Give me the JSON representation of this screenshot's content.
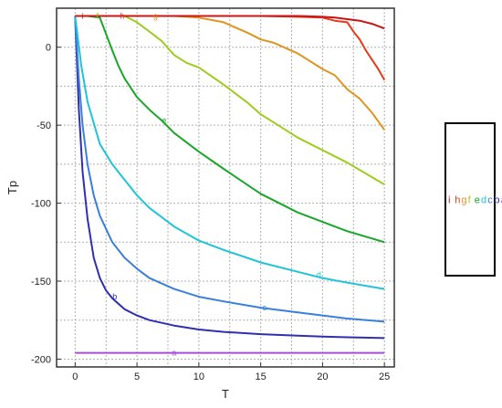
{
  "chart_data": {
    "type": "line",
    "xlabel": "T",
    "ylabel": "Tp",
    "xlim": [
      -1.5,
      25.8
    ],
    "ylim": [
      -205,
      25
    ],
    "x_ticks": [
      0,
      5,
      10,
      15,
      20,
      25
    ],
    "y_ticks": [
      0,
      -50,
      -100,
      -150,
      -200
    ],
    "grid": true,
    "legend_position": "right",
    "series": [
      {
        "name": "a",
        "color": "#a64dd9",
        "x": [
          0,
          25
        ],
        "y": [
          -196,
          -196
        ],
        "label_at": [
          8,
          -196
        ]
      },
      {
        "name": "b",
        "color": "#2f2fb0",
        "x": [
          0,
          0.3,
          0.6,
          1,
          1.5,
          2,
          2.5,
          3,
          4,
          5,
          6,
          8,
          10,
          12,
          15,
          18,
          20,
          22,
          25
        ],
        "y": [
          20,
          -40,
          -80,
          -110,
          -135,
          -148,
          -156,
          -161,
          -168,
          -172,
          -175,
          -178.5,
          -181,
          -182.5,
          -184,
          -185,
          -185.5,
          -186,
          -186.5
        ],
        "label_at": [
          3.2,
          -160
        ]
      },
      {
        "name": "c",
        "color": "#3a7fd9",
        "x": [
          0,
          0.3,
          0.6,
          1,
          1.5,
          2,
          3,
          4,
          5,
          6,
          8,
          10,
          12,
          15,
          18,
          20,
          22,
          25
        ],
        "y": [
          20,
          -20,
          -50,
          -75,
          -95,
          -108,
          -125,
          -135,
          -142,
          -148,
          -155,
          -160,
          -163,
          -167,
          -170,
          -172,
          -174,
          -176
        ],
        "label_at": [
          15.3,
          -167
        ]
      },
      {
        "name": "d",
        "color": "#1fc4d6",
        "x": [
          0,
          0.5,
          1,
          2,
          3,
          4,
          5,
          6,
          8,
          10,
          12,
          15,
          18,
          20,
          22,
          25
        ],
        "y": [
          20,
          -12,
          -35,
          -62,
          -75,
          -85,
          -95,
          -103,
          -115,
          -124,
          -130,
          -138,
          -144,
          -148,
          -151,
          -155
        ],
        "label_at": [
          19.7,
          -146
        ]
      },
      {
        "name": "e",
        "color": "#1aa628",
        "x": [
          0,
          1,
          2,
          3,
          3.5,
          4,
          5,
          6,
          7,
          8,
          10,
          12,
          15,
          18,
          20,
          22,
          25
        ],
        "y": [
          20,
          20,
          19,
          -2,
          -12,
          -20,
          -32,
          -40,
          -47,
          -55,
          -67,
          -78,
          -94,
          -106,
          -112,
          -118,
          -125
        ],
        "label_at": [
          7.2,
          -47
        ]
      },
      {
        "name": "f",
        "color": "#9dcc1c",
        "x": [
          0,
          2,
          4,
          5,
          6,
          7,
          8,
          9,
          10,
          12,
          14,
          15,
          16,
          18,
          20,
          22,
          25
        ],
        "y": [
          20,
          20,
          20,
          16,
          10,
          4,
          -5,
          -10,
          -13,
          -24,
          -36,
          -43,
          -48,
          -58,
          -66,
          -74,
          -88
        ],
        "label_at": [
          1.8,
          20
        ]
      },
      {
        "name": "g",
        "color": "#e09420",
        "x": [
          0,
          5,
          8,
          10,
          12,
          14,
          15,
          16,
          18,
          20,
          21,
          22,
          23,
          24,
          25
        ],
        "y": [
          20,
          20,
          20,
          19,
          16,
          9,
          5,
          3,
          -4,
          -14,
          -18,
          -27,
          -33,
          -42,
          -53
        ],
        "label_at": [
          6.5,
          20
        ]
      },
      {
        "name": "h",
        "color": "#e53a1c",
        "x": [
          0,
          5,
          10,
          15,
          18,
          20,
          21,
          22,
          22.5,
          23,
          23.5,
          24,
          24.5,
          25
        ],
        "y": [
          20,
          20,
          20,
          20,
          19.5,
          19,
          17,
          16,
          10,
          5,
          -2,
          -8,
          -14,
          -21
        ],
        "label_at": [
          3.8,
          20
        ]
      },
      {
        "name": "i",
        "color": "#cc1414",
        "x": [
          0,
          5,
          10,
          15,
          18,
          20,
          21,
          22,
          23,
          24,
          25
        ],
        "y": [
          20,
          20,
          20,
          20,
          20,
          19.5,
          19,
          18,
          17,
          15,
          12
        ],
        "label_at": [
          0.6,
          20
        ]
      }
    ],
    "legend_order": [
      "i",
      "h",
      "g",
      "f",
      "e",
      "d",
      "c",
      "b",
      "a"
    ]
  }
}
